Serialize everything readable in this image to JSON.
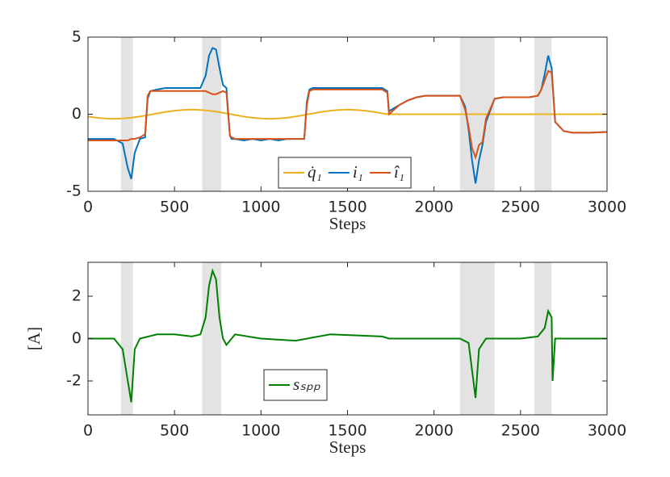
{
  "chart_data": [
    {
      "type": "line",
      "xlabel": "Steps",
      "xlim": [
        0,
        3000
      ],
      "ylim": [
        -5,
        5
      ],
      "xticks": [
        0,
        500,
        1000,
        1500,
        2000,
        2500,
        3000
      ],
      "yticks": [
        -5,
        0,
        5
      ],
      "shaded": [
        [
          190,
          260
        ],
        [
          660,
          770
        ],
        [
          2150,
          2350
        ],
        [
          2580,
          2680
        ]
      ],
      "shade_color": "#e3e3e3",
      "legend": "lower center",
      "x": [
        0,
        50,
        100,
        150,
        200,
        230,
        250,
        270,
        300,
        330,
        345,
        360,
        400,
        450,
        500,
        550,
        600,
        650,
        680,
        700,
        720,
        740,
        760,
        780,
        800,
        820,
        830,
        850,
        900,
        950,
        1000,
        1050,
        1100,
        1150,
        1200,
        1250,
        1265,
        1280,
        1300,
        1350,
        1400,
        1450,
        1500,
        1550,
        1600,
        1650,
        1700,
        1730,
        1740,
        1800,
        1850,
        1900,
        1950,
        2000,
        2050,
        2100,
        2150,
        2180,
        2200,
        2220,
        2240,
        2260,
        2280,
        2300,
        2350,
        2400,
        2450,
        2500,
        2550,
        2600,
        2620,
        2640,
        2660,
        2680,
        2700,
        2750,
        2800,
        2900,
        3000
      ],
      "series": [
        {
          "name": "q̇₁",
          "color": "#edb120",
          "values": [
            -0.15,
            -0.23,
            -0.28,
            -0.3,
            -0.28,
            -0.25,
            -0.23,
            -0.2,
            -0.15,
            -0.09,
            -0.06,
            -0.03,
            0.05,
            0.15,
            0.23,
            0.28,
            0.3,
            0.28,
            0.25,
            0.23,
            0.2,
            0.17,
            0.13,
            0.09,
            0.05,
            0.01,
            -0.01,
            -0.05,
            -0.15,
            -0.23,
            -0.28,
            -0.3,
            -0.28,
            -0.23,
            -0.15,
            -0.05,
            -0.02,
            0.01,
            0.05,
            0.15,
            0.23,
            0.28,
            0.3,
            0.28,
            0.23,
            0.15,
            0.05,
            0,
            0,
            0,
            0,
            0,
            0,
            0,
            0,
            0,
            0,
            0,
            0,
            0,
            0,
            0,
            0,
            0,
            0,
            0,
            0,
            0,
            0,
            0,
            0,
            0,
            0,
            0,
            0,
            0,
            0,
            0,
            0
          ]
        },
        {
          "name": "i₁",
          "color": "#0072bd",
          "values": [
            -1.6,
            -1.6,
            -1.6,
            -1.6,
            -1.9,
            -3.5,
            -4.2,
            -2.5,
            -1.6,
            -1.5,
            1.0,
            1.5,
            1.6,
            1.7,
            1.7,
            1.7,
            1.7,
            1.7,
            2.5,
            3.8,
            4.3,
            4.2,
            3.0,
            1.9,
            1.7,
            -1.4,
            -1.6,
            -1.6,
            -1.7,
            -1.6,
            -1.7,
            -1.6,
            -1.7,
            -1.6,
            -1.6,
            -1.6,
            0.8,
            1.6,
            1.7,
            1.7,
            1.7,
            1.7,
            1.7,
            1.7,
            1.7,
            1.7,
            1.7,
            1.5,
            0.2,
            0.6,
            0.9,
            1.1,
            1.2,
            1.2,
            1.2,
            1.2,
            1.2,
            0.5,
            -1.0,
            -3.0,
            -4.5,
            -3.0,
            -2.0,
            -0.5,
            1.0,
            1.1,
            1.1,
            1.1,
            1.1,
            1.2,
            1.6,
            2.6,
            3.8,
            3.0,
            -0.5,
            -1.1,
            -1.2,
            -1.2,
            -1.15
          ]
        },
        {
          "name": "î₁",
          "color": "#d95319",
          "values": [
            -1.7,
            -1.7,
            -1.7,
            -1.7,
            -1.7,
            -1.7,
            -1.6,
            -1.6,
            -1.5,
            -1.3,
            1.2,
            1.5,
            1.5,
            1.5,
            1.5,
            1.5,
            1.5,
            1.5,
            1.5,
            1.4,
            1.3,
            1.3,
            1.4,
            1.5,
            1.4,
            -1.4,
            -1.5,
            -1.6,
            -1.6,
            -1.6,
            -1.6,
            -1.6,
            -1.6,
            -1.6,
            -1.6,
            -1.6,
            0.6,
            1.5,
            1.6,
            1.6,
            1.6,
            1.6,
            1.6,
            1.6,
            1.6,
            1.6,
            1.6,
            1.4,
            0,
            0.6,
            0.9,
            1.1,
            1.2,
            1.2,
            1.2,
            1.2,
            1.2,
            0.3,
            -0.8,
            -2.2,
            -2.8,
            -2.0,
            -1.8,
            -0.3,
            1.0,
            1.1,
            1.1,
            1.1,
            1.1,
            1.2,
            1.6,
            2.2,
            2.8,
            2.7,
            -0.5,
            -1.1,
            -1.2,
            -1.2,
            -1.15
          ]
        }
      ]
    },
    {
      "type": "line",
      "xlabel": "Steps",
      "ylabel": "[A]",
      "xlim": [
        0,
        3000
      ],
      "ylim": [
        -3.6,
        3.6
      ],
      "xticks": [
        0,
        500,
        1000,
        1500,
        2000,
        2500,
        3000
      ],
      "yticks": [
        -2,
        0,
        2
      ],
      "shaded": [
        [
          190,
          260
        ],
        [
          660,
          770
        ],
        [
          2150,
          2350
        ],
        [
          2580,
          2680
        ]
      ],
      "shade_color": "#e3e3e3",
      "legend": "lower center",
      "x": [
        0,
        100,
        150,
        200,
        230,
        250,
        270,
        300,
        400,
        500,
        600,
        650,
        680,
        700,
        720,
        740,
        760,
        780,
        800,
        850,
        1000,
        1200,
        1400,
        1700,
        1740,
        2000,
        2150,
        2200,
        2220,
        2240,
        2260,
        2300,
        2500,
        2600,
        2640,
        2660,
        2680,
        2685,
        2700,
        3000
      ],
      "series": [
        {
          "name": "sₛₚₚ",
          "color": "#008000",
          "values": [
            0,
            0,
            0,
            -0.5,
            -2,
            -3,
            -0.5,
            0,
            0.2,
            0.2,
            0.1,
            0.2,
            1,
            2.5,
            3.2,
            2.8,
            1,
            0,
            -0.3,
            0.2,
            0,
            -0.1,
            0.2,
            0.1,
            0,
            0,
            0,
            -0.2,
            -1.5,
            -2.8,
            -0.5,
            0,
            0,
            0.1,
            0.5,
            1.3,
            1.0,
            -2,
            0,
            0
          ]
        }
      ]
    }
  ]
}
